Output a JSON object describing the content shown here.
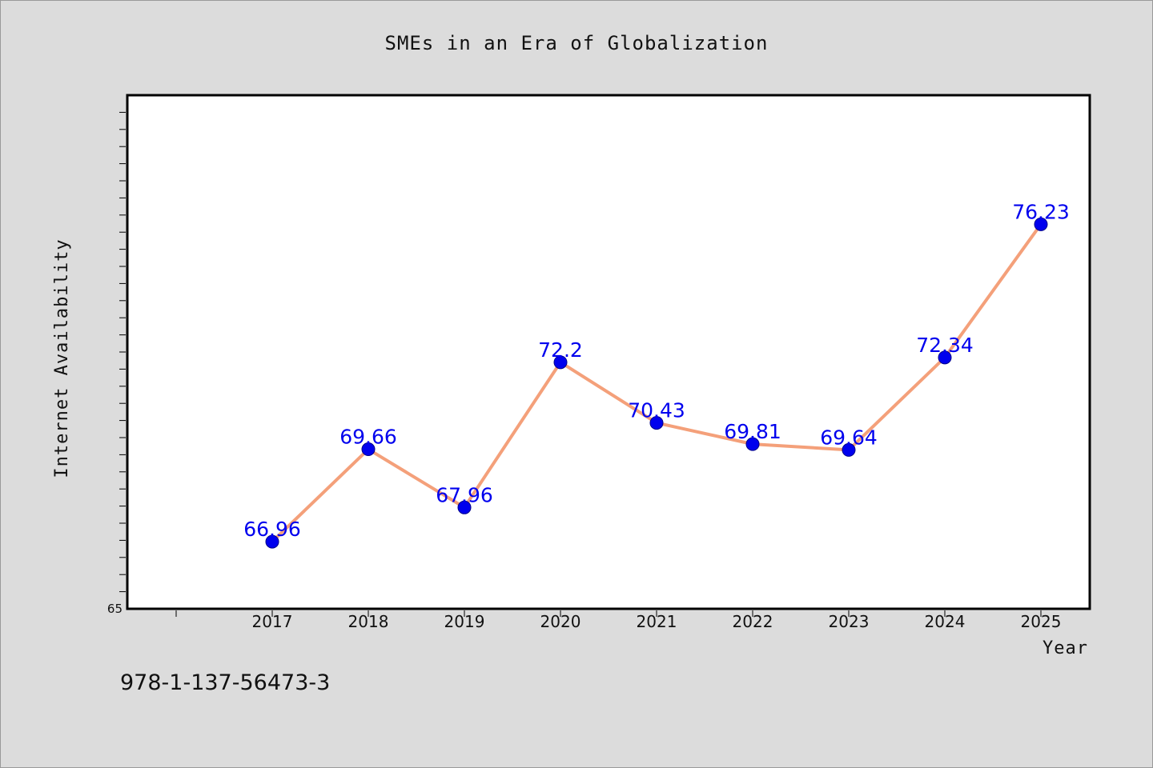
{
  "chart_data": {
    "type": "line",
    "title": "SMEs in an Era of Globalization",
    "xlabel": "Year",
    "ylabel": "Internet Availability",
    "categories": [
      "2017",
      "2018",
      "2019",
      "2020",
      "2021",
      "2022",
      "2023",
      "2024",
      "2025"
    ],
    "series": [
      {
        "values": [
          66.96,
          69.66,
          67.96,
          72.2,
          70.43,
          69.81,
          69.64,
          72.34,
          76.23
        ],
        "data_labels": [
          "66.96",
          "69.66",
          "67.96",
          "72.2",
          "70.43",
          "69.81",
          "69.64",
          "72.34",
          "76.23"
        ]
      }
    ],
    "ylim": [
      65,
      80
    ],
    "yticks_labeled": [
      "65"
    ],
    "grid": false,
    "line_color": "#f4a07a",
    "marker_color": "#0000ee",
    "label_color": "#0000ee",
    "plot_background": "#ffffff",
    "page_background": "#dcdcdc"
  },
  "footer": {
    "isbn": "978-1-137-56473-3"
  }
}
